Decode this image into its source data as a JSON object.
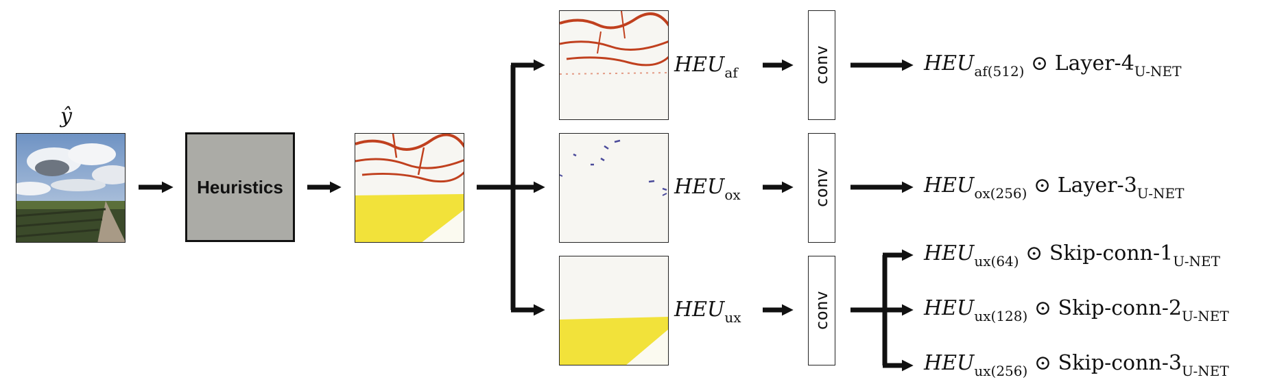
{
  "input": {
    "symbol": "ŷ"
  },
  "heuristics": {
    "label": "Heuristics"
  },
  "branches": [
    {
      "symbol": "HEU",
      "sub": "af",
      "conv": "conv"
    },
    {
      "symbol": "HEU",
      "sub": "ox",
      "conv": "conv"
    },
    {
      "symbol": "HEU",
      "sub": "ux",
      "conv": "conv"
    }
  ],
  "outputs": [
    {
      "symbol": "HEU",
      "sub": "af(512)",
      "op": "⊙",
      "target": "Layer-4",
      "target_sub": "U-NET"
    },
    {
      "symbol": "HEU",
      "sub": "ox(256)",
      "op": "⊙",
      "target": "Layer-3",
      "target_sub": "U-NET"
    },
    {
      "symbol": "HEU",
      "sub": "ux(64)",
      "op": "⊙",
      "target": "Skip-conn-1",
      "target_sub": "U-NET"
    },
    {
      "symbol": "HEU",
      "sub": "ux(128)",
      "op": "⊙",
      "target": "Skip-conn-2",
      "target_sub": "U-NET"
    },
    {
      "symbol": "HEU",
      "sub": "ux(256)",
      "op": "⊙",
      "target": "Skip-conn-3",
      "target_sub": "U-NET"
    }
  ],
  "colors": {
    "heuristics_fill": "#ababa6",
    "af_map": "#c0401e",
    "ox_map": "#4a4a9a",
    "ux_map": "#f2e23a",
    "arrow": "#111111"
  }
}
